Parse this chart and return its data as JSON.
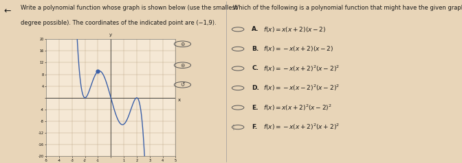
{
  "title_left_line1": "Write a polynomial function whose graph is shown below (use the smallest",
  "title_left_line2": "degree possible). The coordinates of the indicated point are (−1,9).",
  "title_right": "Which of the following is a polynomial function that might have the given graph?",
  "options": [
    {
      "label": "A.",
      "math": "f(x) = x(x + 2)(x − 2)"
    },
    {
      "label": "B.",
      "math": "f(x) = −x(x + 2)(x − 2)"
    },
    {
      "label": "C.",
      "math": "f(x) = −x(x + 2)²(x − 2)²"
    },
    {
      "label": "D.",
      "math": "f(x) = −x(x − 2)²(x − 2)²"
    },
    {
      "label": "E.",
      "math": "f(x) = x(x + 2)²(x − 2)²"
    },
    {
      "label": "F.",
      "math": "f(x) = −x(x + 2)²(x + 2)²"
    }
  ],
  "graph_xlim": [
    -5,
    5
  ],
  "graph_ylim": [
    -20,
    20
  ],
  "graph_xticks": [
    -5,
    -4,
    -3,
    -2,
    -1,
    0,
    1,
    2,
    3,
    4,
    5
  ],
  "graph_yticks": [
    -20,
    -16,
    -12,
    -8,
    -4,
    0,
    4,
    8,
    12,
    16,
    20
  ],
  "indicated_point": [
    -1,
    9
  ],
  "curve_color": "#3a5fa8",
  "bg_color": "#e8d5b8",
  "graph_bg": "#f5e8d5",
  "text_color": "#1a1a1a",
  "divider_color": "#999999"
}
